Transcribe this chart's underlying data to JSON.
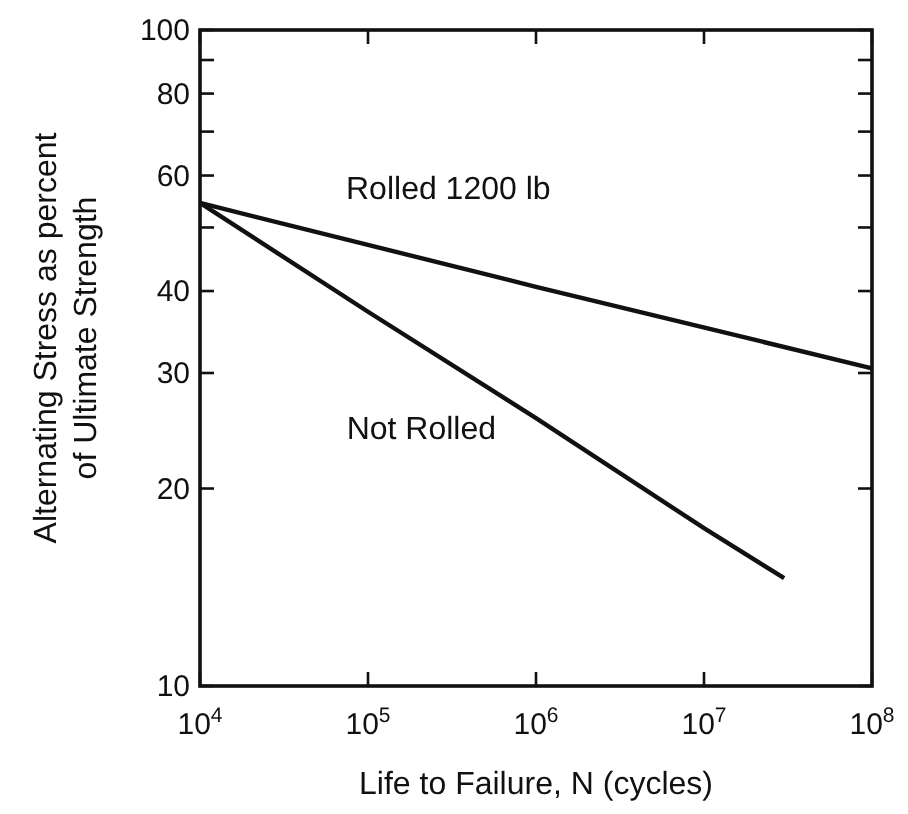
{
  "chart_data": {
    "type": "line",
    "xlabel": "Life to Failure, N (cycles)",
    "ylabel": "Alternating Stress as percent\nof Ultimate Strength",
    "log": "xy",
    "grid": false,
    "marker": "none",
    "line_style": "solid",
    "xlim": [
      10000,
      100000000
    ],
    "ylim": [
      10,
      100
    ],
    "xticks": [
      {
        "value": 10000,
        "label": "10$^{4}$"
      },
      {
        "value": 100000,
        "label": "10$^{5}$"
      },
      {
        "value": 1000000,
        "label": "10$^{6}$"
      },
      {
        "value": 10000000,
        "label": "10$^{7}$"
      },
      {
        "value": 100000000,
        "label": "10$^{8}$"
      }
    ],
    "yticks": [
      10,
      20,
      30,
      40,
      {
        "value": 50,
        "label": null
      },
      60,
      {
        "value": 70,
        "label": null
      },
      80,
      {
        "value": 90,
        "label": null
      },
      100
    ],
    "series": [
      {
        "name": "Rolled 1200 lb",
        "color": "#111111",
        "x": [
          10000,
          1000000,
          100000000
        ],
        "values": [
          54.5,
          40.6,
          30.5
        ]
      },
      {
        "name": "Not Rolled",
        "color": "#111111",
        "x": [
          10000,
          100000,
          1000000,
          10000000,
          30000000
        ],
        "values": [
          54.5,
          37.2,
          25.6,
          17.4,
          14.6
        ]
      }
    ]
  }
}
